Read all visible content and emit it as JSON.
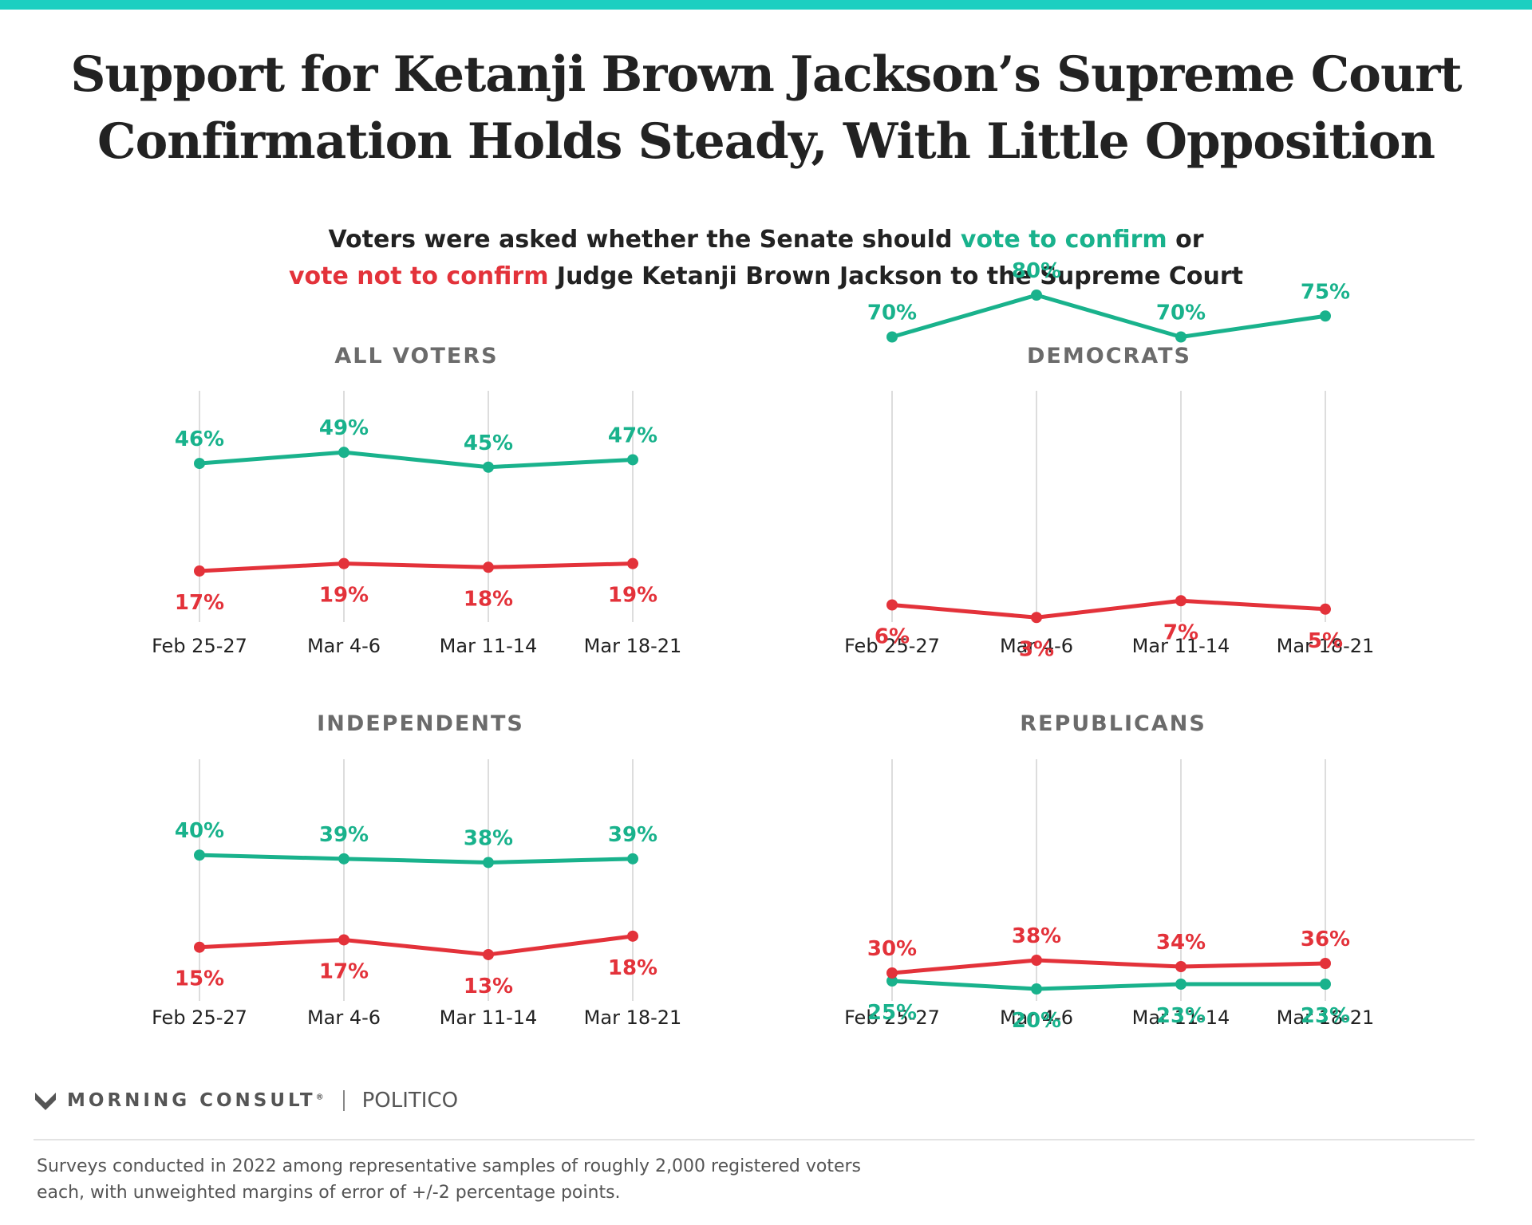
{
  "title": {
    "line1": "Support for Ketanji Brown Jackson’s Supreme Court",
    "line2": "Confirmation Holds Steady, With Little Opposition"
  },
  "subtitle": {
    "part1": "Voters were asked whether the Senate should ",
    "confirm": "vote to confirm",
    "part2": " or",
    "not_confirm": "vote not to confirm",
    "part3": " Judge Ketanji Brown Jackson to the Supreme Court"
  },
  "colors": {
    "top_bar": "#1ccfc1",
    "confirm": "#19b28c",
    "not_confirm": "#e3323a",
    "panel_title": "#6b6b6b",
    "gridline": "#dddddd",
    "tick_text": "#222222"
  },
  "chart_data": [
    {
      "type": "line",
      "title": "ALL VOTERS",
      "categories": [
        "Feb 25-27",
        "Mar 4-6",
        "Mar 11-14",
        "Mar 18-21"
      ],
      "series": [
        {
          "name": "vote to confirm",
          "values": [
            46,
            49,
            45,
            47
          ],
          "labels": [
            "46%",
            "49%",
            "45%",
            "47%"
          ],
          "color": "#19b28c"
        },
        {
          "name": "vote not to confirm",
          "values": [
            17,
            19,
            18,
            19
          ],
          "labels": [
            "17%",
            "19%",
            "18%",
            "19%"
          ],
          "color": "#e3323a"
        }
      ],
      "ylim": [
        0,
        100
      ],
      "grid": "vertical"
    },
    {
      "type": "line",
      "title": "DEMOCRATS",
      "categories": [
        "Feb 25-27",
        "Mar 4-6",
        "Mar 11-14",
        "Mar 18-21"
      ],
      "series": [
        {
          "name": "vote to confirm",
          "values": [
            70,
            80,
            70,
            75
          ],
          "labels": [
            "70%",
            "80%",
            "70%",
            "75%"
          ],
          "color": "#19b28c"
        },
        {
          "name": "vote not to confirm",
          "values": [
            6,
            3,
            7,
            5
          ],
          "labels": [
            "6%",
            "3%",
            "7%",
            "5%"
          ],
          "color": "#e3323a"
        }
      ],
      "ylim": [
        0,
        100
      ],
      "grid": "vertical"
    },
    {
      "type": "line",
      "title": "INDEPENDENTS",
      "categories": [
        "Feb 25-27",
        "Mar 4-6",
        "Mar 11-14",
        "Mar 18-21"
      ],
      "series": [
        {
          "name": "vote to confirm",
          "values": [
            40,
            39,
            38,
            39
          ],
          "labels": [
            "40%",
            "39%",
            "38%",
            "39%"
          ],
          "color": "#19b28c"
        },
        {
          "name": "vote not to confirm",
          "values": [
            15,
            17,
            13,
            18
          ],
          "labels": [
            "15%",
            "17%",
            "13%",
            "18%"
          ],
          "color": "#e3323a"
        }
      ],
      "ylim": [
        0,
        100
      ],
      "grid": "vertical"
    },
    {
      "type": "line",
      "title": "REPUBLICANS",
      "categories": [
        "Feb 25-27",
        "Mar 4-6",
        "Mar 11-14",
        "Mar 18-21"
      ],
      "series": [
        {
          "name": "vote to confirm",
          "values": [
            25,
            20,
            23,
            23
          ],
          "labels": [
            "25%",
            "20%",
            "23%",
            "23%"
          ],
          "color": "#19b28c"
        },
        {
          "name": "vote not to confirm",
          "values": [
            30,
            38,
            34,
            36
          ],
          "labels": [
            "30%",
            "38%",
            "34%",
            "36%"
          ],
          "color": "#e3323a"
        }
      ],
      "ylim": [
        0,
        100
      ],
      "grid": "vertical"
    }
  ],
  "footer": {
    "logo_icon": "morning-consult-m-icon",
    "brand": "MORNING CONSULT",
    "brand_mark": "®",
    "partner": "POLITICO",
    "note_line1": "Surveys conducted in 2022 among representative samples of roughly 2,000 registered voters",
    "note_line2": "each, with unweighted margins of error of +/-2 percentage points."
  }
}
